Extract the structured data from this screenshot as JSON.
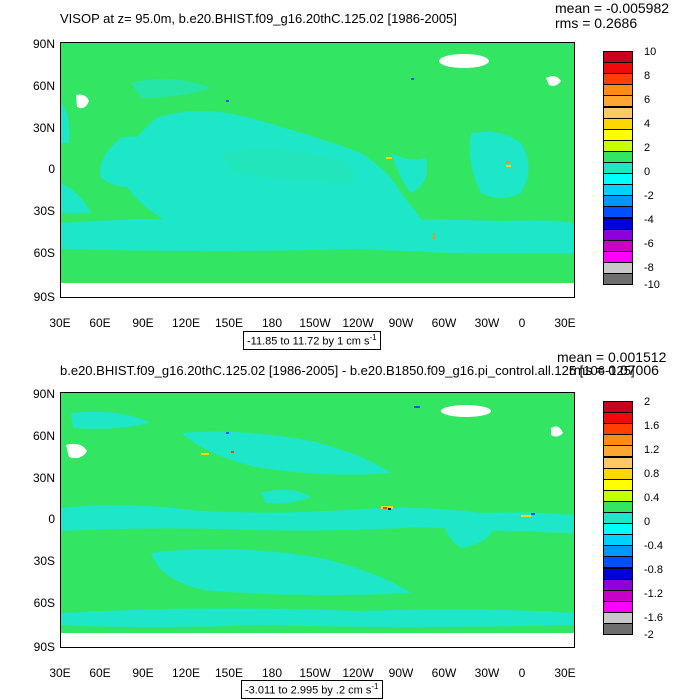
{
  "colors": {
    "land": "#32e664",
    "ocean": "#1ee6c8",
    "ocean_light": "#22e6b8",
    "continent_blank": "#ffffff",
    "border": "#000000"
  },
  "scale_colors": [
    "#c8001e",
    "#f00a0a",
    "#ff4000",
    "#ff8c14",
    "#ffa532",
    "#ffc864",
    "#ffd700",
    "#ffff00",
    "#c8ff00",
    "#32e664",
    "#1ee6c8",
    "#00ffff",
    "#00d2ff",
    "#0096ff",
    "#0050ff",
    "#0000dc",
    "#8c00dc",
    "#c800c8",
    "#ff00ff",
    "#c8c8c8",
    "#6e6e6e"
  ],
  "top": {
    "title": "VISOP at z=  95.0m, b.e20.BHIST.f09_g16.20thC.125.02 [1986-2005]",
    "mean": "mean = -0.005982",
    "rms": "rms = 0.2686",
    "range_text": "-11.85 to 11.72 by 1 cm s",
    "range_sup": "-1",
    "lat_labels": [
      "90N",
      "60N",
      "30N",
      "0",
      "30S",
      "60S",
      "90S"
    ],
    "lon_labels": [
      "30E",
      "60E",
      "90E",
      "120E",
      "150E",
      "180",
      "150W",
      "120W",
      "90W",
      "60W",
      "30W",
      "0",
      "30E"
    ],
    "colorbar_labels": [
      "10",
      "8",
      "6",
      "4",
      "2",
      "0",
      "-2",
      "-4",
      "-6",
      "-8",
      "-10"
    ]
  },
  "bottom": {
    "title": "b.e20.BHIST.f09_g16.20thC.125.02 [1986-2005] - b.e20.B1850.f09_g16.pi_control.all.125 [106-125]",
    "mean": "mean = 0.001512",
    "rms": "rms = 0.07006",
    "range_text": "-3.011 to 2.995 by .2 cm s",
    "range_sup": "-1",
    "lat_labels": [
      "90N",
      "60N",
      "30N",
      "0",
      "30S",
      "60S",
      "90S"
    ],
    "lon_labels": [
      "30E",
      "60E",
      "90E",
      "120E",
      "150E",
      "180",
      "150W",
      "120W",
      "90W",
      "60W",
      "30W",
      "0",
      "30E"
    ],
    "colorbar_labels": [
      "2",
      "1.6",
      "1.2",
      "0.8",
      "0.4",
      "0",
      "-0.4",
      "-0.8",
      "-1.2",
      "-1.6",
      "-2"
    ]
  }
}
